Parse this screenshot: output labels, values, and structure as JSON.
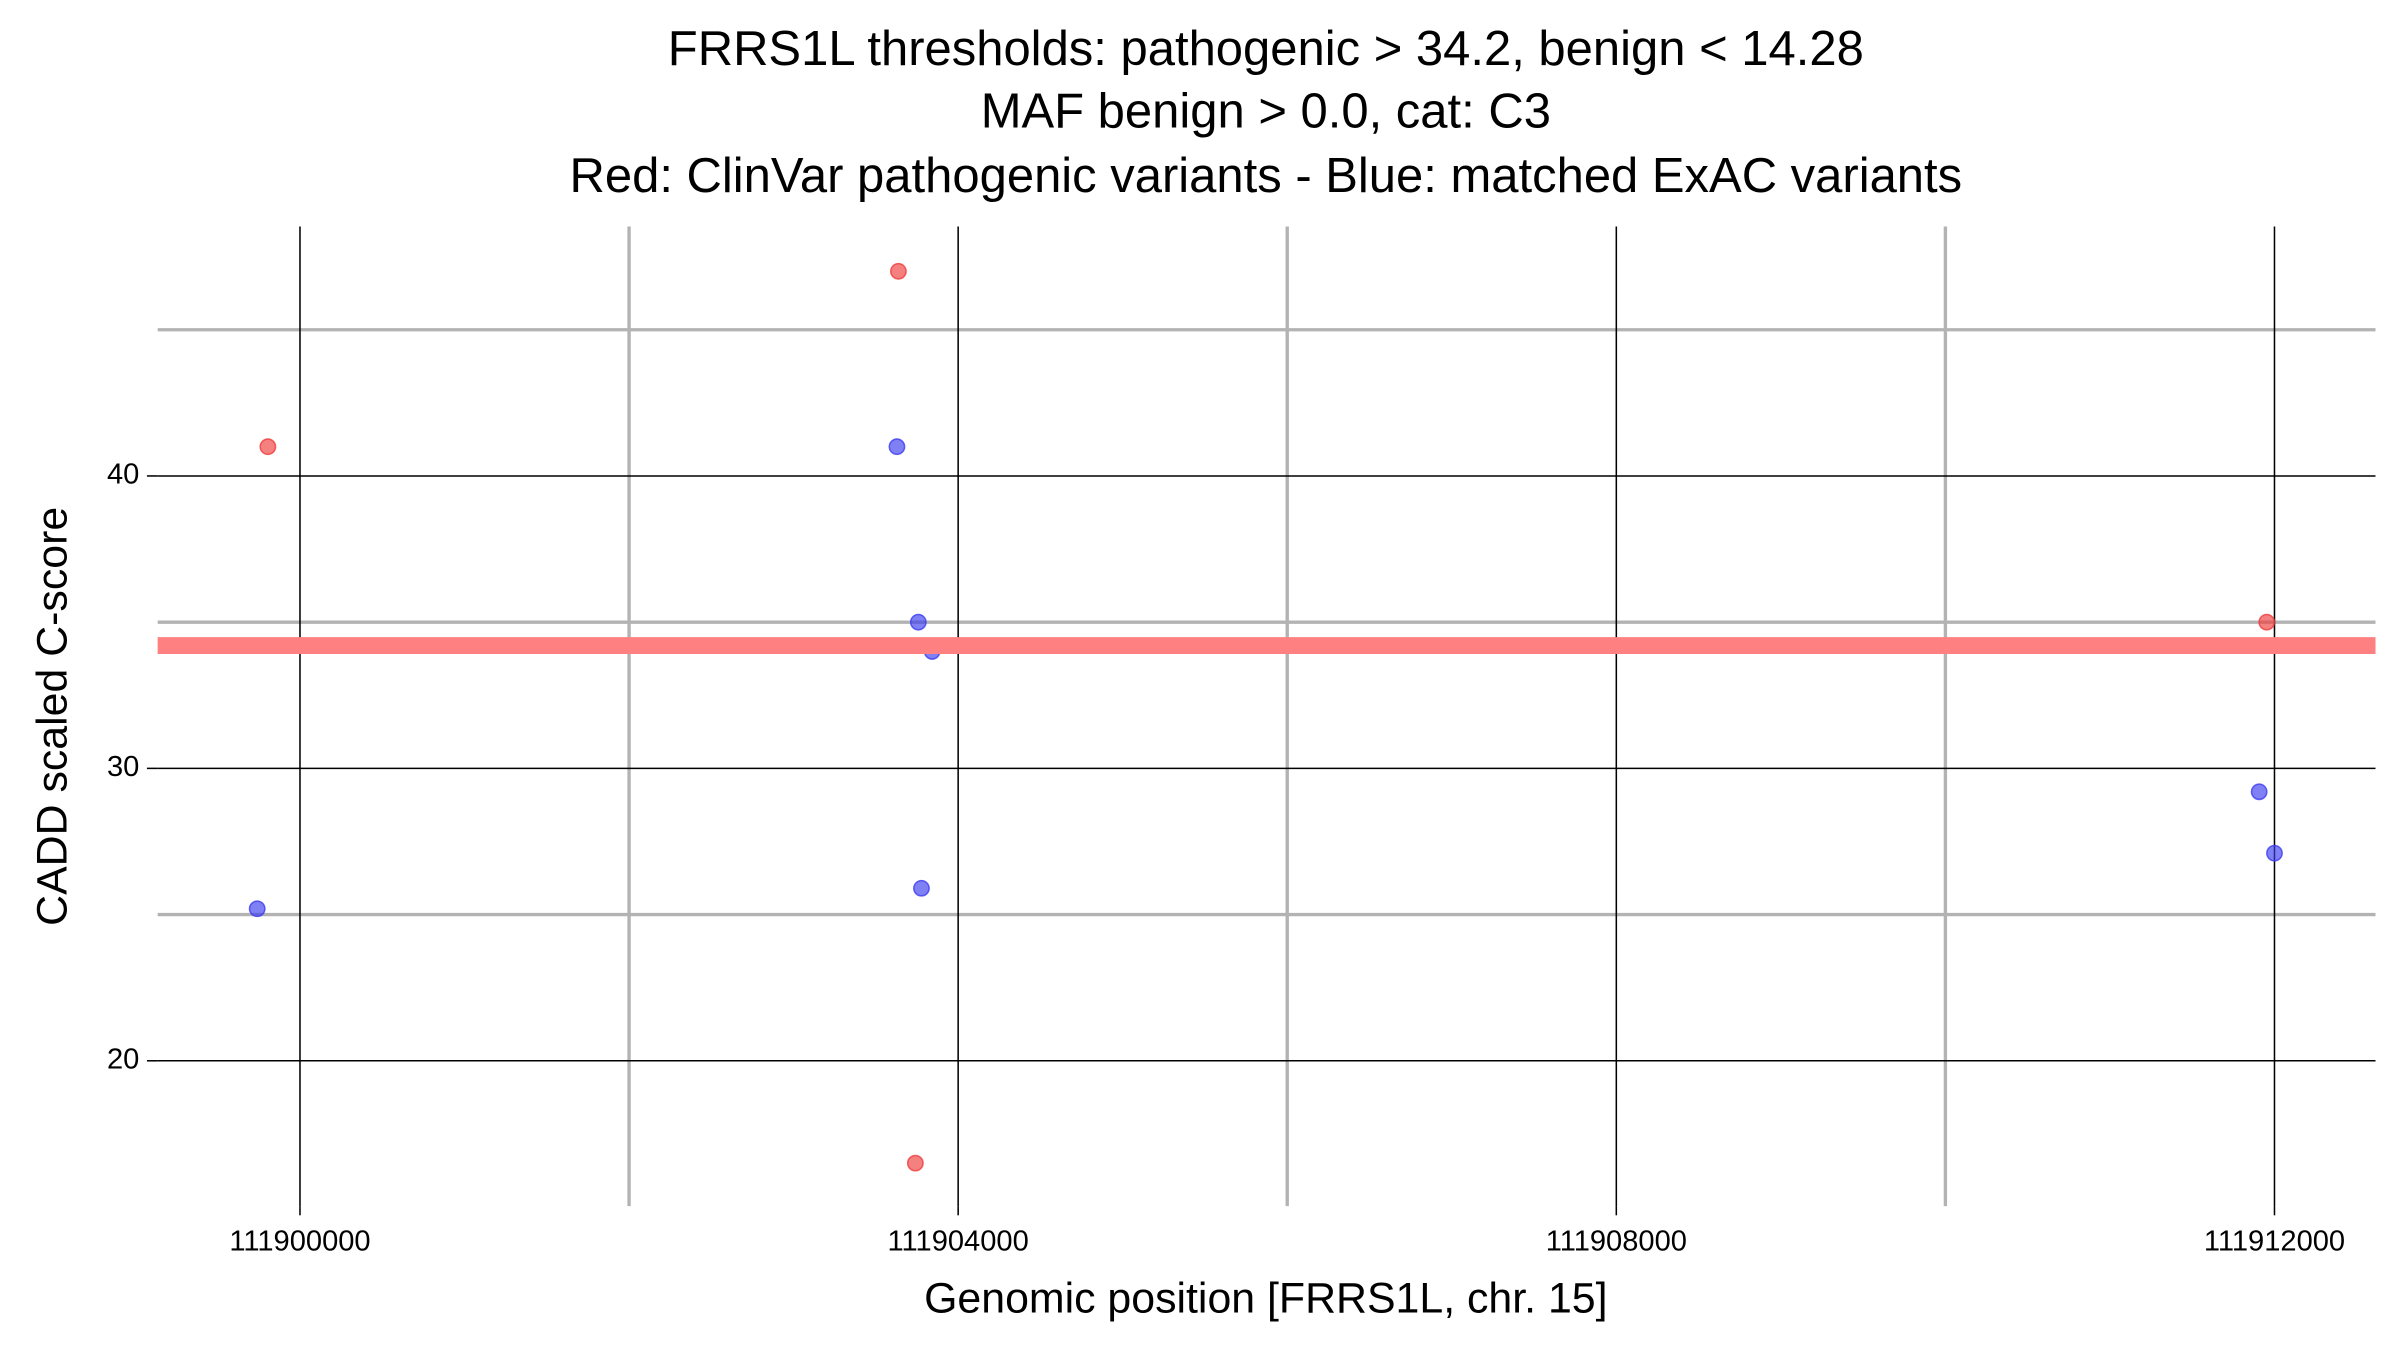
{
  "chart_data": {
    "type": "scatter",
    "title": [
      "FRRS1L thresholds: pathogenic > 34.2, benign < 14.28",
      "MAF benign > 0.0, cat: C3",
      "Red: ClinVar pathogenic variants - Blue: matched ExAC variants"
    ],
    "x_label": "Genomic position [FRRS1L, chr. 15]",
    "y_label": "CADD scaled C-score",
    "series": [
      {
        "color": "#f03c3c",
        "x": [
          111899805,
          111903637,
          111903740,
          111911953
        ],
        "values": [
          41,
          47,
          16.5,
          35
        ]
      },
      {
        "color": "#3c3cf0",
        "x": [
          111899740,
          111903628,
          111903758,
          111903842,
          111903777,
          111911907,
          111912000
        ],
        "values": [
          25.2,
          41,
          35,
          34,
          25.9,
          29.2,
          27.1
        ]
      }
    ],
    "hline": {
      "value": 34.2,
      "color": "#ff8080"
    },
    "xlim": [
      111899135,
      111912614
    ],
    "ylim": [
      15.03,
      48.53
    ],
    "xticks": [
      111900000,
      111904000,
      111908000,
      111912000
    ],
    "yticks": [
      20,
      30,
      40
    ],
    "x_minor_grid": [
      111902000,
      111906000,
      111910000
    ],
    "y_minor_grid": [
      25,
      35,
      45
    ],
    "grid": true
  }
}
